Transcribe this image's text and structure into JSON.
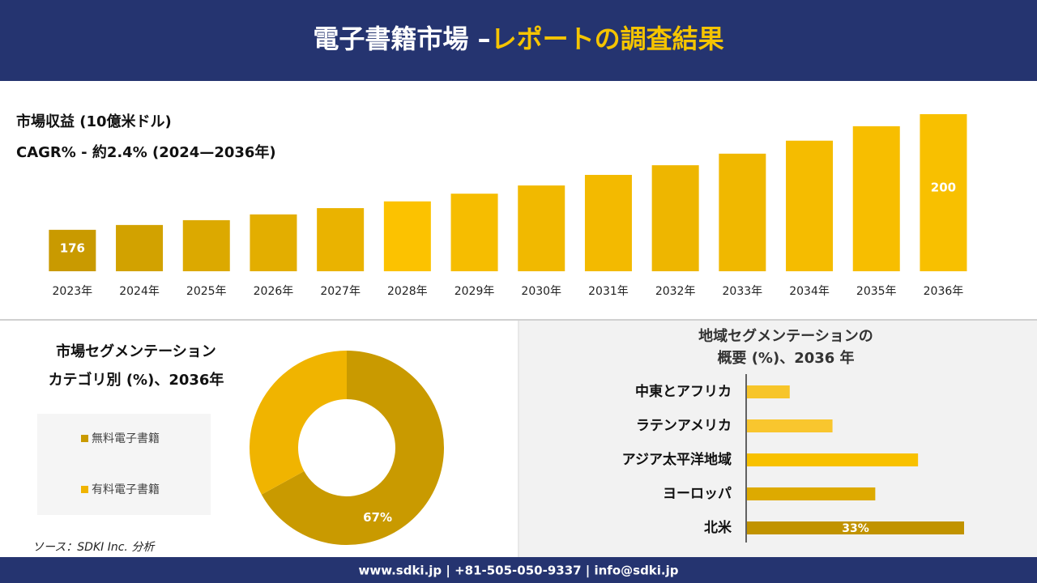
{
  "header": {
    "title_main": "電子書籍市場 –",
    "title_accent": "レポートの調査結果"
  },
  "footer": "www.sdki.jp | +81-505-050-9337 | info@sdki.jp",
  "source": "ソース：SDKI Inc. 分析",
  "chart_data": [
    {
      "type": "bar",
      "orientation": "vertical",
      "title": "市場収益 (10億米ドル)",
      "subtitle": "CAGR% - 約2.4% (2024—2036年)",
      "categories": [
        "2023年",
        "2024年",
        "2025年",
        "2026年",
        "2027年",
        "2028年",
        "2029年",
        "2030年",
        "2031年",
        "2032年",
        "2033年",
        "2034年",
        "2035年",
        "2036年"
      ],
      "values": [
        176,
        177,
        178,
        179.2,
        180.5,
        181.9,
        183.5,
        185.2,
        187.4,
        189.4,
        191.8,
        194.5,
        197.5,
        200
      ],
      "value_labels": [
        "176",
        null,
        null,
        null,
        null,
        null,
        null,
        null,
        null,
        null,
        null,
        null,
        null,
        "200"
      ],
      "colors": [
        "#c99a00",
        "#d2a200",
        "#dca900",
        "#e3ae00",
        "#eab300",
        "#fcc200",
        "#f6bd00",
        "#f1b900",
        "#f3ba00",
        "#eeb600",
        "#f0b800",
        "#f5bc00",
        "#f7be00",
        "#f8c000"
      ],
      "ylim": [
        167.4,
        200
      ]
    },
    {
      "type": "donut",
      "title": "市場セグメンテーション",
      "subtitle": "カテゴリ別 (%)、2036年",
      "categories": [
        "無料電子書籍",
        "有料電子書籍"
      ],
      "values": [
        67,
        33
      ],
      "value_labels": [
        "67%",
        null
      ],
      "colors": [
        "#c99a00",
        "#f0b400"
      ]
    },
    {
      "type": "bar",
      "orientation": "horizontal",
      "title": [
        "地域セグメンテーションの",
        "概要 (%)、2036 年"
      ],
      "categories": [
        "中東とアフリカ",
        "ラテンアメリカ",
        "アジア太平洋地域",
        "ヨーロッパ",
        "北米"
      ],
      "values": [
        6.5,
        13,
        26,
        19.5,
        33
      ],
      "value_labels": [
        null,
        null,
        null,
        null,
        "33%"
      ],
      "colors": [
        "#f7c52a",
        "#f9c62e",
        "#f8c100",
        "#ddaa00",
        "#c19300"
      ],
      "xlim": [
        0,
        33
      ]
    }
  ]
}
